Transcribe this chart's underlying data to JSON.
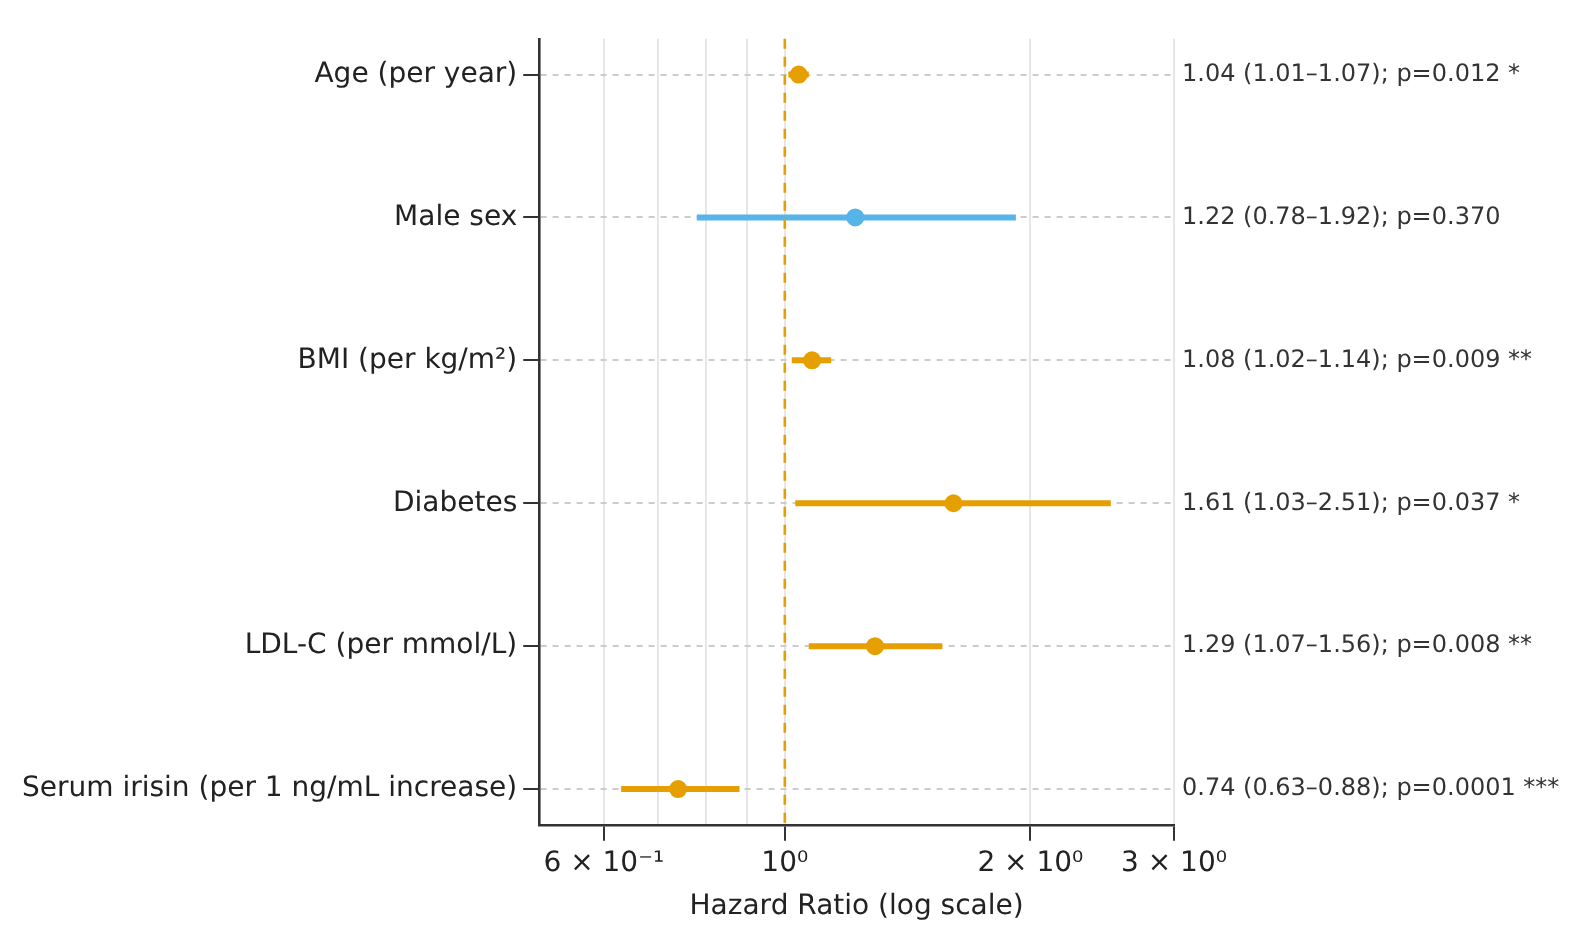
{
  "chart_data": {
    "type": "scatter",
    "orientation": "horizontal",
    "xlabel": "Hazard Ratio (log scale)",
    "categories": [
      "Age (per year)",
      "Male sex",
      "BMI (per kg/m²)",
      "Diabetes",
      "LDL-C (per mmol/L)",
      "Serum irisin (per 1 ng/mL increase)"
    ],
    "series": [
      {
        "color": "#e69f00",
        "marker": "circle",
        "values": [
          1.04,
          null,
          1.08,
          1.61,
          1.29,
          0.74
        ],
        "errors": [
          [
            1.01,
            1.07
          ],
          null,
          [
            1.02,
            1.14
          ],
          [
            1.03,
            2.51
          ],
          [
            1.07,
            1.56
          ],
          [
            0.63,
            0.88
          ]
        ]
      },
      {
        "color": "#56b4e9",
        "marker": "circle",
        "values": [
          null,
          1.22,
          null,
          null,
          null,
          null
        ],
        "errors": [
          null,
          [
            0.78,
            1.92
          ],
          null,
          null,
          null,
          null
        ]
      }
    ],
    "log": "x",
    "xlim": [
      0.5,
      3
    ],
    "xticks": [
      {
        "value": 0.6,
        "label": "6 × 10⁻¹"
      },
      {
        "value": 0.7,
        "label": null
      },
      {
        "value": 0.8,
        "label": null
      },
      {
        "value": 0.9,
        "label": null
      },
      {
        "value": 1,
        "label": "10⁰"
      },
      {
        "value": 2,
        "label": "2 × 10⁰"
      },
      {
        "value": 3,
        "label": "3 × 10⁰"
      }
    ],
    "grid": true,
    "legend": false,
    "ref_lines": [
      {
        "axis": "x",
        "value": 1,
        "color": "#e69f00",
        "line_style": "dashed"
      }
    ],
    "annotations": [
      "1.04 (1.01–1.07); p=0.012 *",
      "1.22 (0.78–1.92); p=0.370",
      "1.08 (1.02–1.14); p=0.009 **",
      "1.61 (1.03–2.51); p=0.037 *",
      "1.29 (1.07–1.56); p=0.008 **",
      "0.74 (0.63–0.88); p=0.0001 ***"
    ]
  }
}
